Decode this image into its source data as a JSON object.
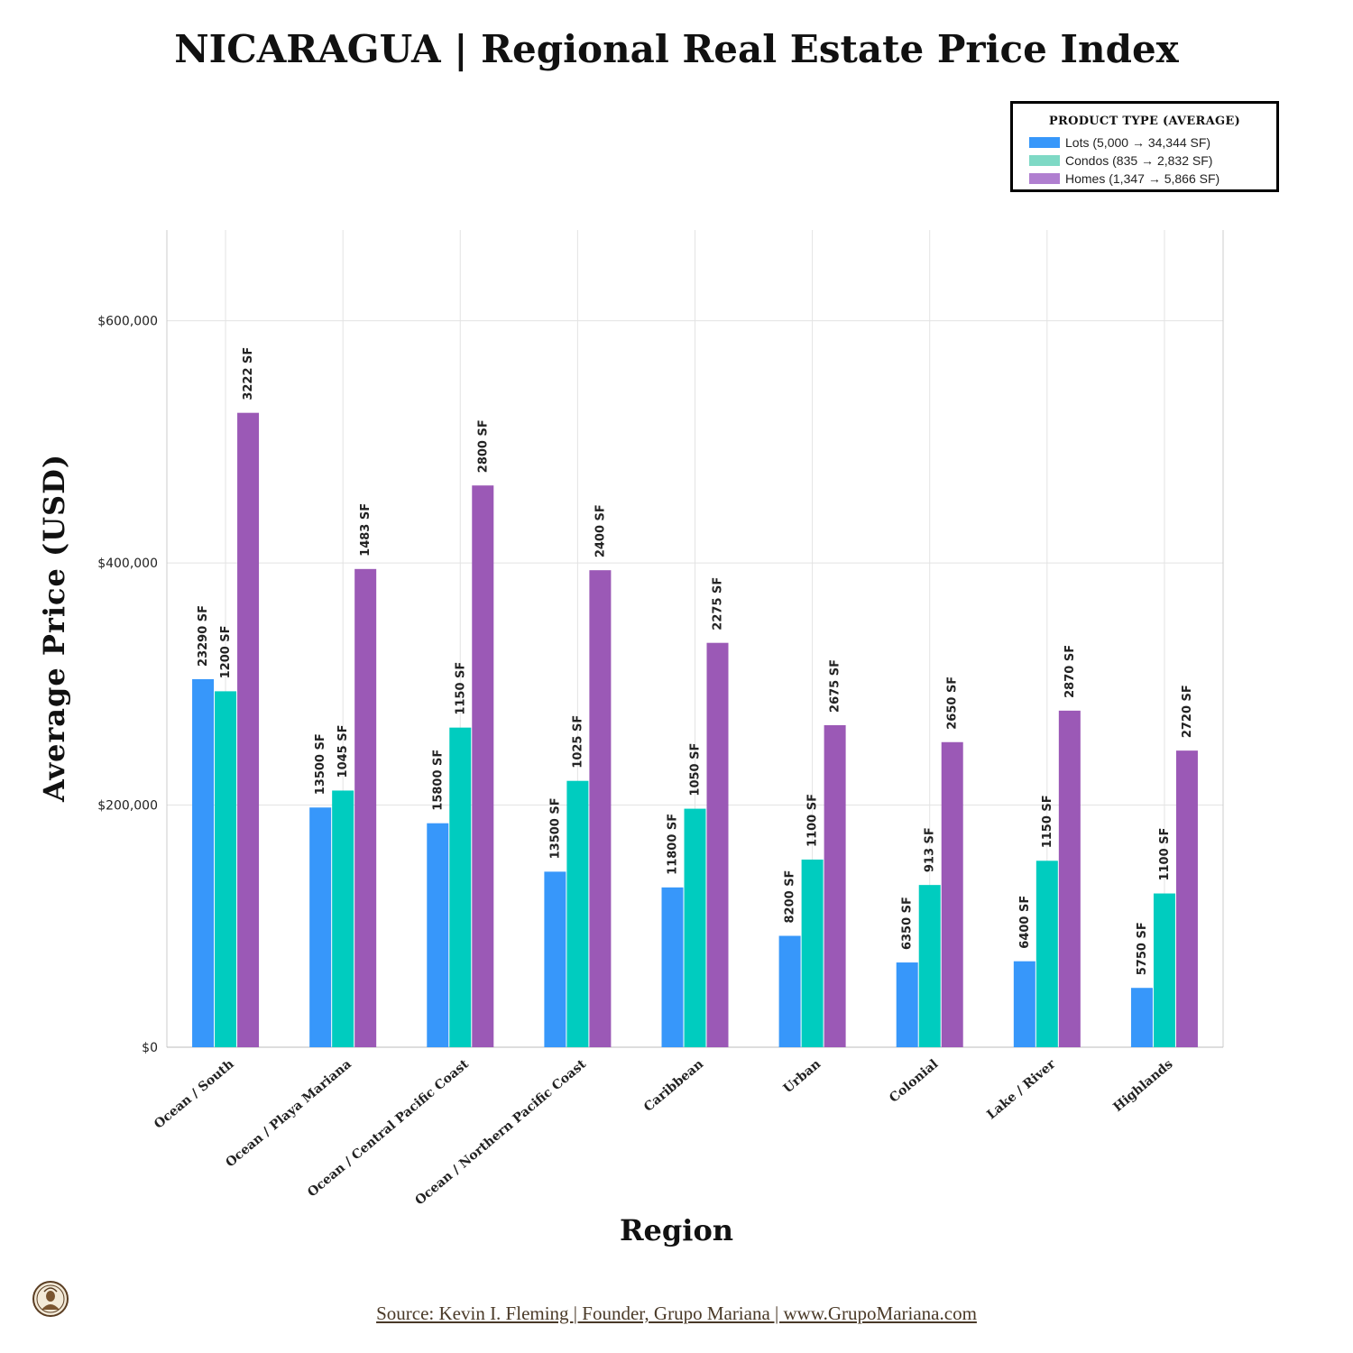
{
  "chart_data": {
    "type": "bar",
    "title": "NICARAGUA | Regional Real Estate Price Index",
    "xlabel": "Region",
    "ylabel": "Average Price (USD)",
    "ylim": [
      0,
      675000
    ],
    "yticks": [
      0,
      200000,
      400000,
      600000
    ],
    "ytick_labels": [
      "$0",
      "$200,000",
      "$400,000",
      "$600,000"
    ],
    "grid": true,
    "legend_placement": "top-right",
    "legend_title": "PRODUCT TYPE (AVERAGE)",
    "categories": [
      "Ocean / South",
      "Ocean / Playa Mariana",
      "Ocean / Central Pacific Coast",
      "Ocean / Northern Pacific Coast",
      "Caribbean",
      "Urban",
      "Colonial",
      "Lake  / River",
      "Highlands"
    ],
    "series": [
      {
        "name": "Lots (5,000 → 34,344 SF)",
        "color": "#3797fa",
        "values": [
          304000,
          198000,
          185000,
          145000,
          132000,
          92000,
          70000,
          71000,
          49000
        ],
        "labels": [
          "23290 SF",
          "13500 SF",
          "15800 SF",
          "13500 SF",
          "11800 SF",
          "8200 SF",
          "6350 SF",
          "6400 SF",
          "5750 SF"
        ]
      },
      {
        "name": "Condos (835 → 2,832 SF)",
        "color": "#00ccbf",
        "legend_color": "#7ed9c5",
        "values": [
          294000,
          212000,
          264000,
          220000,
          197000,
          155000,
          134000,
          154000,
          127000
        ],
        "labels": [
          "1200 SF",
          "1045 SF",
          "1150 SF",
          "1025 SF",
          "1050 SF",
          "1100 SF",
          "913 SF",
          "1150 SF",
          "1100 SF"
        ]
      },
      {
        "name": "Homes (1,347 → 5,866 SF)",
        "color": "#9b59b6",
        "legend_color": "#b07fd0",
        "values": [
          524000,
          395000,
          464000,
          394000,
          334000,
          266000,
          252000,
          278000,
          245000
        ],
        "labels": [
          "3222 SF",
          "1483 SF",
          "2800 SF",
          "2400 SF",
          "2275 SF",
          "2675 SF",
          "2650 SF",
          "2870 SF",
          "2720 SF"
        ]
      }
    ]
  },
  "footer": {
    "source": "Source: Kevin I. Fleming | Founder, Grupo Mariana | www.GrupoMariana.com"
  },
  "icons": {
    "logo": "grupo-mariana-logo"
  }
}
